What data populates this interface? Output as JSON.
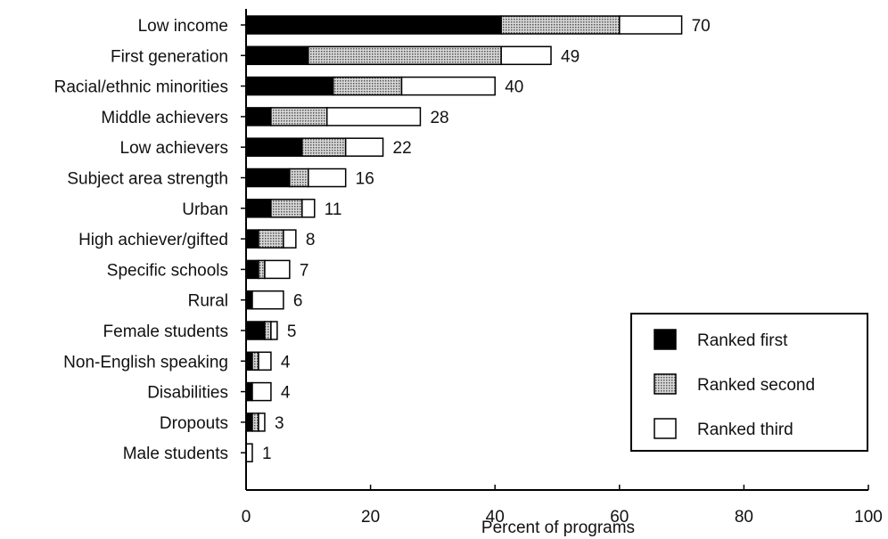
{
  "chart_data": {
    "type": "bar",
    "orientation": "horizontal",
    "stacked": true,
    "categories": [
      "Low income",
      "First generation",
      "Racial/ethnic minorities",
      "Middle achievers",
      "Low achievers",
      "Subject area strength",
      "Urban",
      "High achiever/gifted",
      "Specific schools",
      "Rural",
      "Female students",
      "Non-English speaking",
      "Disabilities",
      "Dropouts",
      "Male students"
    ],
    "series": [
      {
        "name": "Ranked first",
        "pattern": "solid",
        "values": [
          41,
          10,
          14,
          4,
          9,
          7,
          4,
          2,
          2,
          1,
          3,
          1,
          1,
          1,
          0
        ]
      },
      {
        "name": "Ranked second",
        "pattern": "dotted",
        "values": [
          19,
          31,
          11,
          9,
          7,
          3,
          5,
          4,
          1,
          0,
          1,
          1,
          0,
          1,
          0
        ]
      },
      {
        "name": "Ranked third",
        "pattern": "open",
        "values": [
          10,
          8,
          15,
          15,
          6,
          6,
          2,
          2,
          4,
          5,
          1,
          2,
          3,
          1,
          1
        ]
      }
    ],
    "totals": [
      70,
      49,
      40,
      28,
      22,
      16,
      11,
      8,
      7,
      6,
      5,
      4,
      4,
      3,
      1
    ],
    "xlabel": "Percent of programs",
    "xlim": [
      0,
      100
    ],
    "xticks": [
      0,
      20,
      40,
      60,
      80,
      100
    ],
    "grid": false,
    "legend_position": "bottom-right",
    "colors": {
      "first": "#000000",
      "second": "#b8b8b8",
      "third": "#ffffff",
      "stroke": "#000000"
    }
  }
}
